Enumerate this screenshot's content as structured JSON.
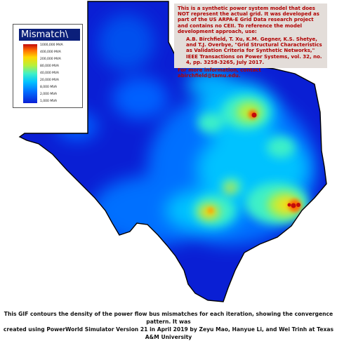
{
  "legend": {
    "title": "Mismatch\\",
    "labels": [
      "1000,000 MVA",
      "400,000 MVA",
      "200,000 MVA",
      "80,000 MVA",
      "40,000 MVA",
      "20,000 MVA",
      "8,000 MVA",
      "2,000 MVA",
      "1,000 MVA"
    ],
    "colors": [
      "#c40a0a",
      "#ff6a00",
      "#ffd800",
      "#b8f03a",
      "#3ef0c8",
      "#00c2ff",
      "#0070ff",
      "#0a1fd4"
    ]
  },
  "info": {
    "intro": "This is a synthetic power system model that does NOT represent the actual grid. It was developed as part of the US ARPA-E Grid Data research project and contains no CEII. To reference the model development approach, use:",
    "citation": "A.B. Birchfield, T. Xu, K.M. Gegner, K.S. Shetye, and T.J. Overbye, \"Grid Structural Characteristics as Validation Criteria for Synthetic Networks,\" IEEE Transactions on Power Systems, vol. 32, no. 4, pp. 3258-3265, July 2017.",
    "contact": "For more information, contact abirchfield@tamu.edu."
  },
  "caption": {
    "line1": "This GIF contours the density of the power flow bus mismatches for each iteration, showing the convergence pattern. It was",
    "line2": "created using PowerWorld Simulator Version 21 in April 2019 by Zeyu Mao, Hanyue Li, and Wei Trinh at Texas A&M University"
  }
}
